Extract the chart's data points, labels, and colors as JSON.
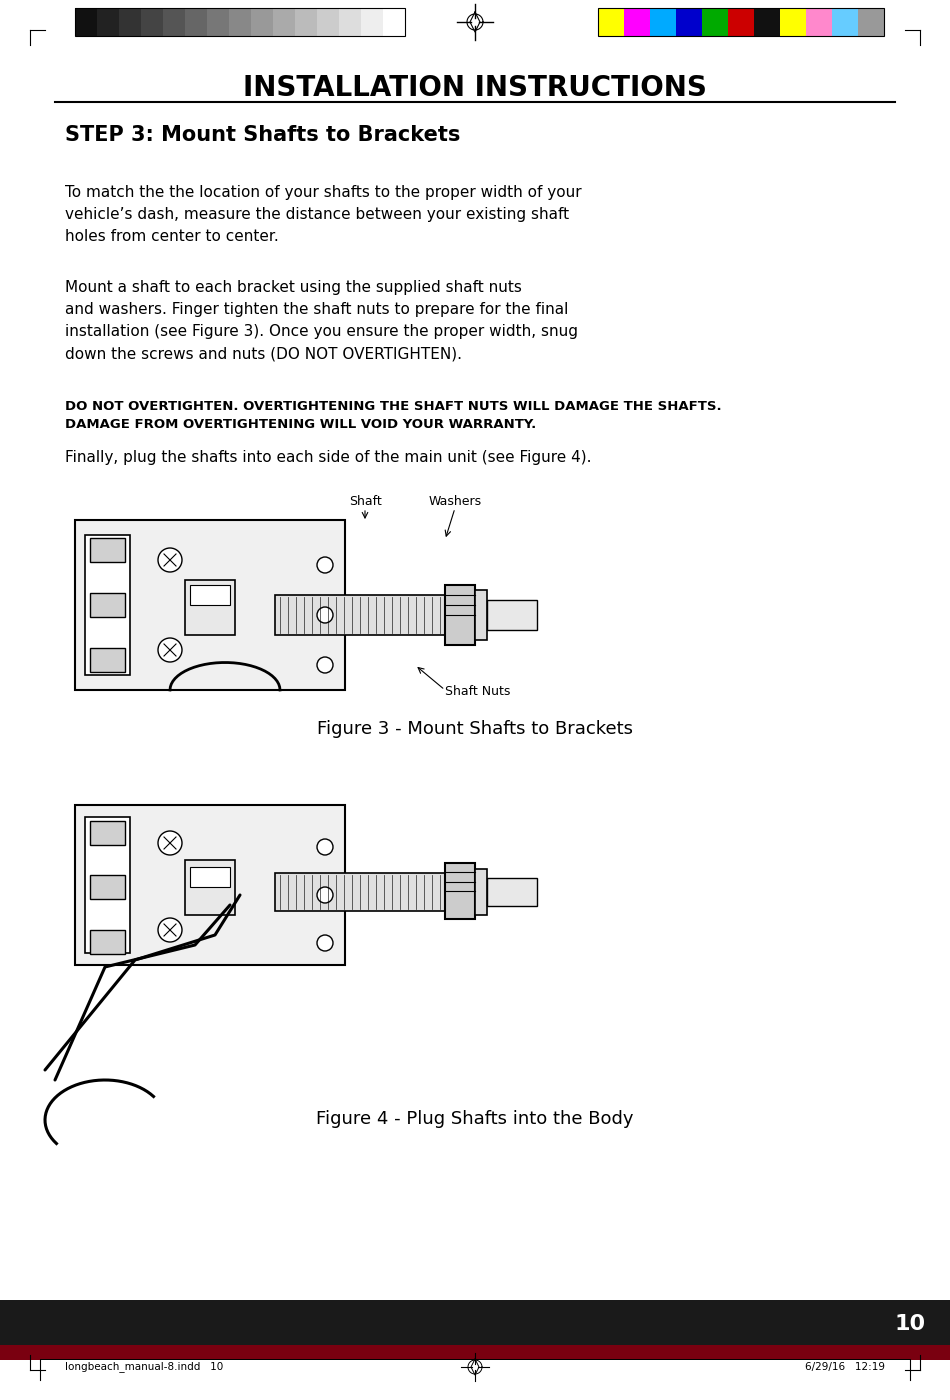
{
  "page_bg": "#ffffff",
  "border_color": "#000000",
  "title": "INSTALLATION INSTRUCTIONS",
  "step_heading": "STEP 3: Mount Shafts to Brackets",
  "para1": "To match the the location of your shafts to the proper width of your\nvehicle’s dash, measure the distance between your existing shaft\nholes from center to center.",
  "para2": "Mount a shaft to each bracket using the supplied shaft nuts\nand washers. Finger tighten the shaft nuts to prepare for the final\ninstallation (see Figure 3). Once you ensure the proper width, snug\ndown the screws and nuts (DO NOT OVERTIGHTEN).",
  "warning": "DO NOT OVERTIGHTEN. OVERTIGHTENING THE SHAFT NUTS WILL DAMAGE THE SHAFTS.\nDAMAGE FROM OVERTIGHTENING WILL VOID YOUR WARRANTY.",
  "para3": "Finally, plug the shafts into each side of the main unit (see Figure 4).",
  "fig3_caption": "Figure 3 - Mount Shafts to Brackets",
  "fig4_caption": "Figure 4 - Plug Shafts into the Body",
  "footer_left": "longbeach_manual-8.indd   10",
  "footer_right": "6/29/16   12:19",
  "page_number": "10",
  "footer_bar_color": "#1a1a1a",
  "dark_red": "#7a0010",
  "gray_swatches": [
    "#111111",
    "#222222",
    "#333333",
    "#444444",
    "#555555",
    "#666666",
    "#777777",
    "#888888",
    "#999999",
    "#aaaaaa",
    "#bbbbbb",
    "#cccccc",
    "#dddddd",
    "#eeeeee",
    "#ffffff"
  ],
  "color_swatches": [
    "#ffff00",
    "#ff00ff",
    "#00aaff",
    "#0000cc",
    "#00aa00",
    "#cc0000",
    "#111111",
    "#ffff00",
    "#ff88cc",
    "#66ccff",
    "#999999"
  ]
}
